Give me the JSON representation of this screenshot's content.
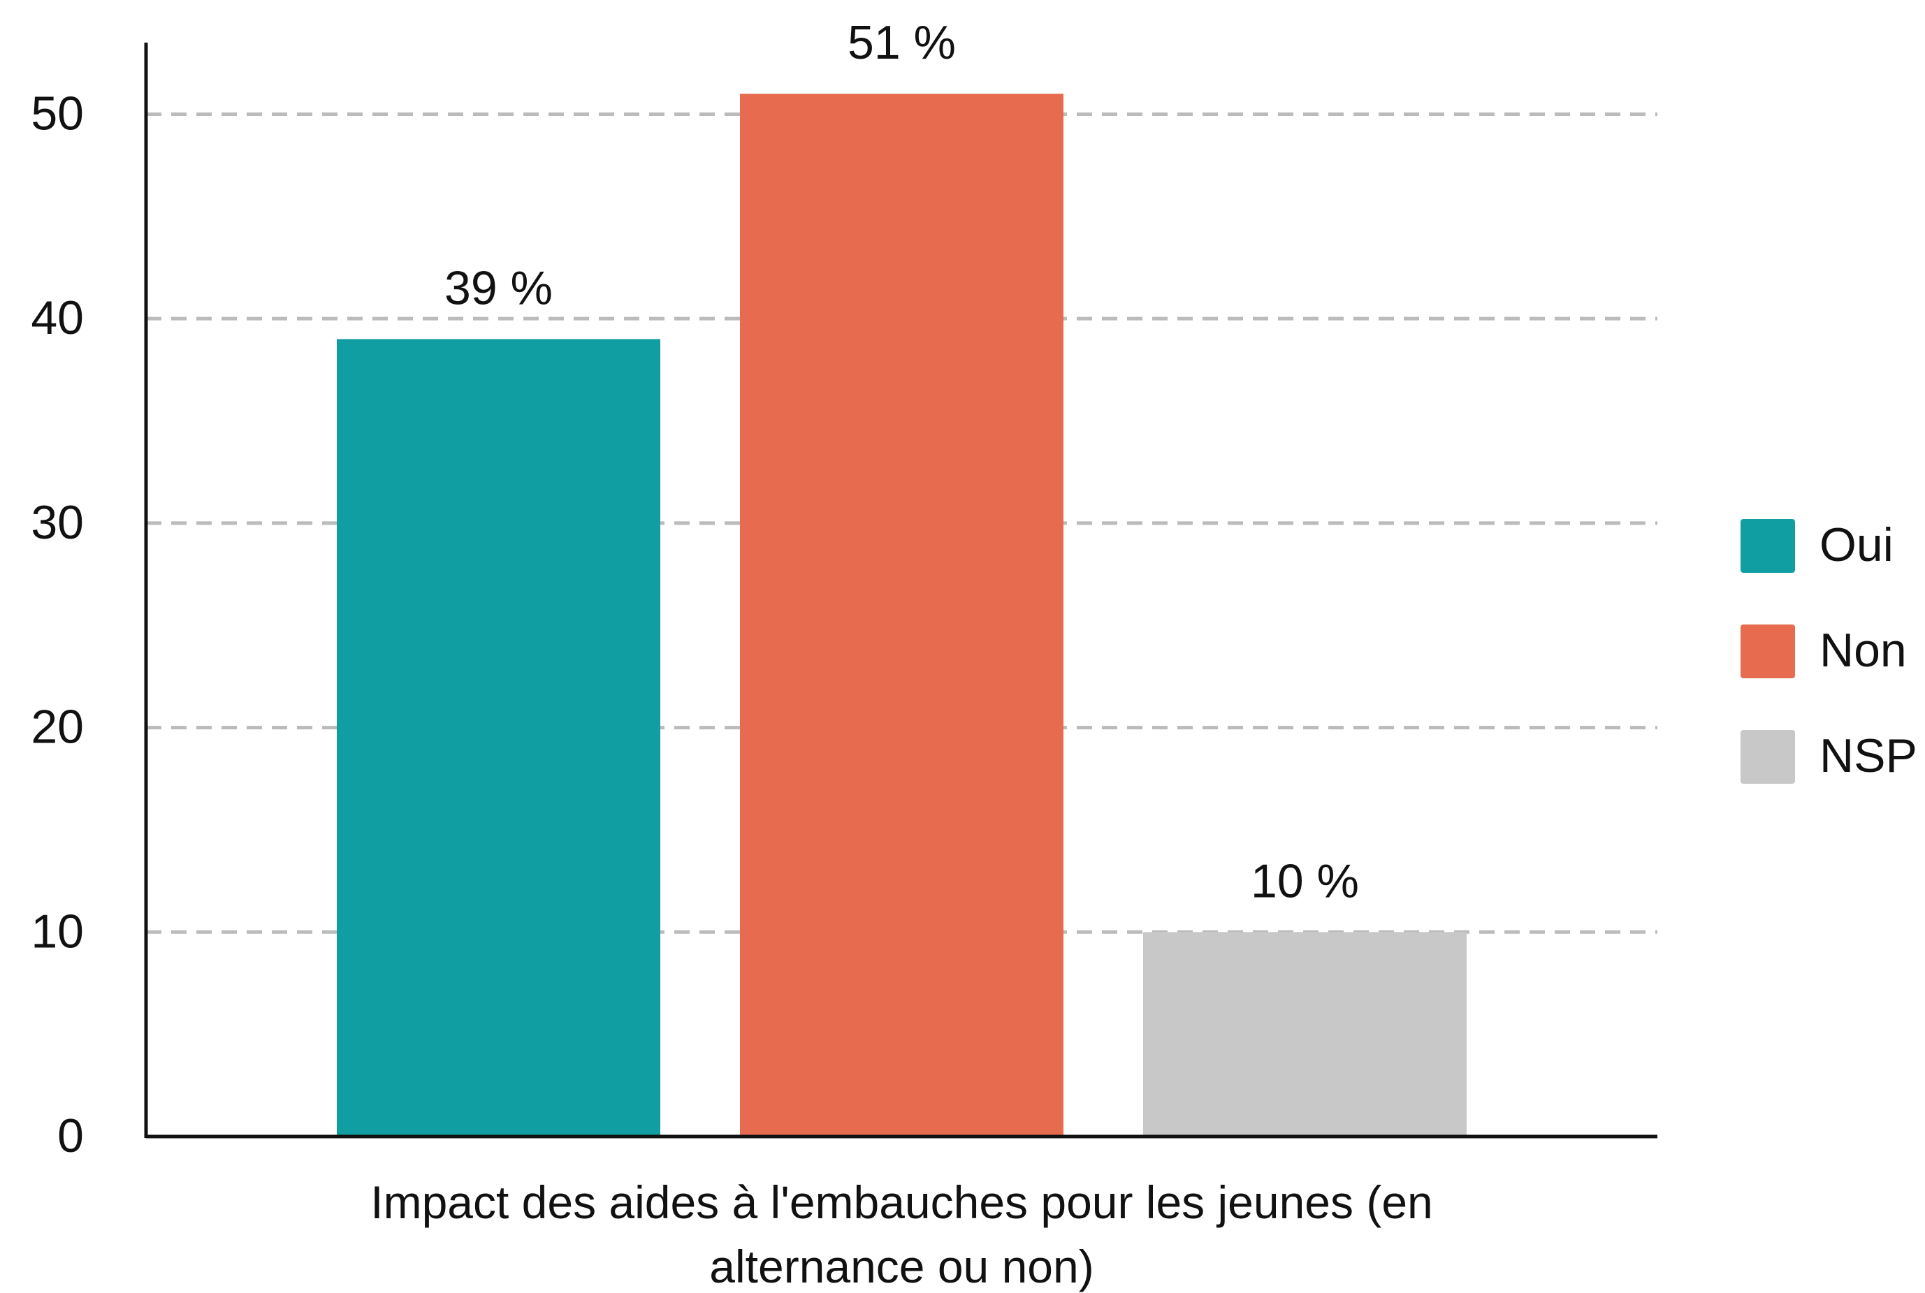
{
  "chart_data": {
    "type": "bar",
    "categories": [
      "Impact des aides à l'embauches pour les jeunes (en alternance ou non)"
    ],
    "series": [
      {
        "name": "Oui",
        "color": "#109ea3",
        "values": [
          39
        ],
        "value_labels": [
          "39 %"
        ]
      },
      {
        "name": "Non",
        "color": "#e76c4f",
        "values": [
          51
        ],
        "value_labels": [
          "51 %"
        ]
      },
      {
        "name": "NSP",
        "color": "#c8c8c8",
        "values": [
          10
        ],
        "value_labels": [
          "10 %"
        ]
      }
    ],
    "ylim": [
      0,
      53.5
    ],
    "yticks": [
      0,
      10,
      20,
      30,
      40,
      50
    ],
    "grid": true,
    "legend": "right"
  }
}
